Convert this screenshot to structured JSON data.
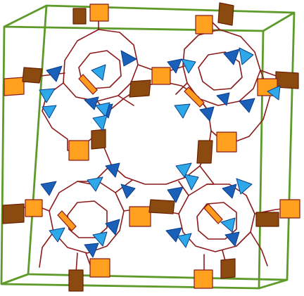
{
  "colors": {
    "background": "#ffffff",
    "cell_box": "#5e9a2a",
    "framework_edge": "#8b1a1a",
    "square_front": "#ffa01e",
    "square_back": "#8a4a10",
    "triangle_light": "#2ea8e8",
    "triangle_dark": "#1a5fb8",
    "slab": "#ff9a20"
  }
}
